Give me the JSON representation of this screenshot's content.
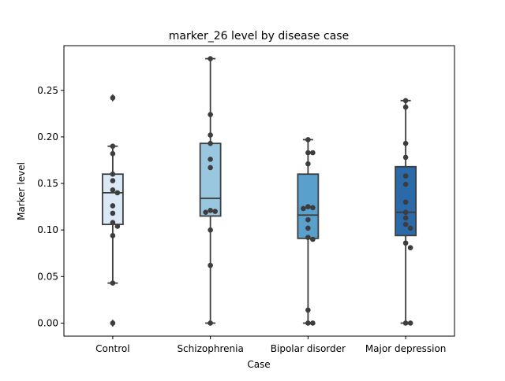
{
  "chart_data": {
    "type": "box",
    "title": "marker_26 level by disease case",
    "xlabel": "Case",
    "ylabel": "Marker level",
    "ylim": [
      -0.014,
      0.298
    ],
    "yticks": [
      "0.00",
      "0.05",
      "0.10",
      "0.15",
      "0.20",
      "0.25"
    ],
    "grid": false,
    "categories": [
      "Control",
      "Schizophrenia",
      "Bipolar disorder",
      "Major depression"
    ],
    "box_colors": [
      "#dbe9f6",
      "#9ac7e0",
      "#5aa0cd",
      "#2b6aa9"
    ],
    "boxes": [
      {
        "category": "Control",
        "whisker_low": 0.043,
        "q1": 0.106,
        "median": 0.14,
        "q3": 0.16,
        "whisker_high": 0.19,
        "outliers": [
          0.242,
          0.0
        ]
      },
      {
        "category": "Schizophrenia",
        "whisker_low": 0.0,
        "q1": 0.115,
        "median": 0.134,
        "q3": 0.193,
        "whisker_high": 0.284,
        "outliers": []
      },
      {
        "category": "Bipolar disorder",
        "whisker_low": 0.0,
        "q1": 0.091,
        "median": 0.116,
        "q3": 0.16,
        "whisker_high": 0.197,
        "outliers": []
      },
      {
        "category": "Major depression",
        "whisker_low": 0.0,
        "q1": 0.094,
        "median": 0.119,
        "q3": 0.168,
        "whisker_high": 0.239,
        "outliers": []
      }
    ],
    "points": [
      {
        "category": "Control",
        "values": [
          0.242,
          0.19,
          0.182,
          0.16,
          0.153,
          0.143,
          0.14,
          0.126,
          0.118,
          0.108,
          0.104,
          0.094,
          0.043,
          0.0
        ]
      },
      {
        "category": "Schizophrenia",
        "values": [
          0.284,
          0.224,
          0.202,
          0.193,
          0.176,
          0.167,
          0.121,
          0.12,
          0.119,
          0.1,
          0.062,
          0.0
        ]
      },
      {
        "category": "Bipolar disorder",
        "values": [
          0.197,
          0.183,
          0.183,
          0.171,
          0.125,
          0.124,
          0.123,
          0.111,
          0.102,
          0.092,
          0.09,
          0.014,
          0.0,
          0.0
        ]
      },
      {
        "category": "Major depression",
        "values": [
          0.239,
          0.232,
          0.193,
          0.178,
          0.158,
          0.149,
          0.13,
          0.119,
          0.113,
          0.106,
          0.102,
          0.086,
          0.081,
          0.0,
          0.0
        ]
      }
    ]
  }
}
